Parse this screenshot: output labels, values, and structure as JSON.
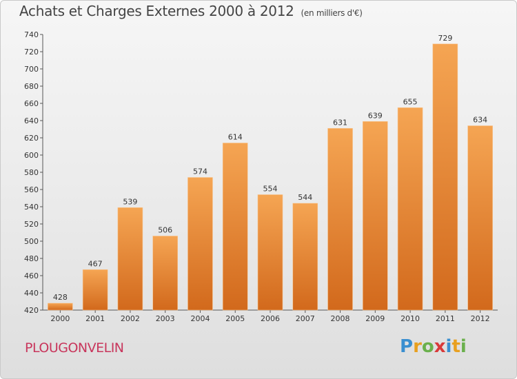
{
  "title": "Achats et Charges Externes 2000 à 2012",
  "subtitle": "(en milliers d'€)",
  "commune": "PLOUGONVELIN",
  "logo": {
    "letters": [
      "P",
      "r",
      "o",
      "x",
      "i",
      "t",
      "i"
    ],
    "colors": [
      "#3a8fd0",
      "#e8a020",
      "#6ab04c",
      "#d83a3a",
      "#3a8fd0",
      "#e8a020",
      "#6ab04c"
    ]
  },
  "chart_data": {
    "type": "bar",
    "title": "Achats et Charges Externes 2000 à 2012",
    "subtitle": "(en milliers d'€)",
    "categories": [
      "2000",
      "2001",
      "2002",
      "2003",
      "2004",
      "2005",
      "2006",
      "2007",
      "2008",
      "2009",
      "2010",
      "2011",
      "2012"
    ],
    "values": [
      428,
      467,
      539,
      506,
      574,
      614,
      554,
      544,
      631,
      639,
      655,
      729,
      634
    ],
    "ylim": [
      420,
      740
    ],
    "yticks": [
      420,
      440,
      460,
      480,
      500,
      520,
      540,
      560,
      580,
      600,
      620,
      640,
      660,
      680,
      700,
      720,
      740
    ],
    "grid": false,
    "bar_color_top": "#f5a553",
    "bar_color_bottom": "#d2691c"
  }
}
